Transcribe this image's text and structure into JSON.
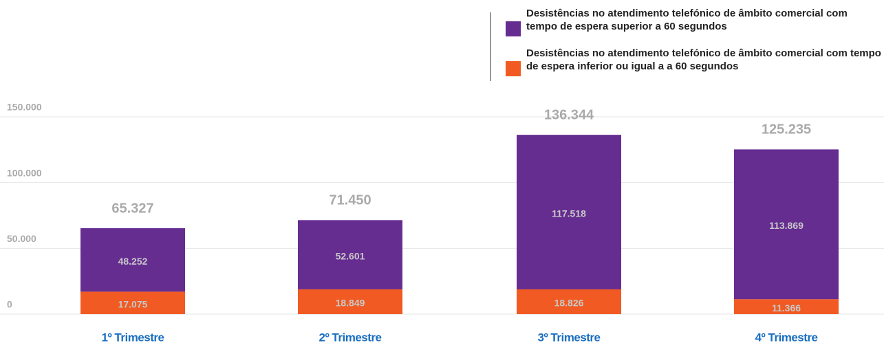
{
  "chart_data": {
    "type": "stacked_bar",
    "categories": [
      "1º Trimestre",
      "2º Trimestre",
      "3º Trimestre",
      "4º Trimestre"
    ],
    "series": [
      {
        "name": "Desistências no atendimento telefónico de âmbito comercial com tempo de espera inferior ou igual a a 60 segundos",
        "color": "#f15a22",
        "values": [
          17075,
          18849,
          18826,
          11366
        ],
        "value_labels": [
          "17.075",
          "18.849",
          "18.826",
          "11.366"
        ]
      },
      {
        "name": "Desistências no atendimento telefónico de âmbito comercial com tempo de espera superior a 60 segundos",
        "color": "#662d91",
        "values": [
          48252,
          52601,
          117518,
          113869
        ],
        "value_labels": [
          "48.252",
          "52.601",
          "117.518",
          "113.869"
        ]
      }
    ],
    "totals": {
      "values": [
        65327,
        71450,
        136344,
        125235
      ],
      "value_labels": [
        "65.327",
        "71.450",
        "136.344",
        "125.235"
      ]
    },
    "ylim": [
      0,
      150000
    ],
    "yticks": [
      0,
      {
        "value": 50000,
        "label": "50.000"
      },
      {
        "value": 100000,
        "label": "100.000"
      },
      {
        "value": 150000,
        "label": "150.000"
      }
    ],
    "grid": true
  }
}
